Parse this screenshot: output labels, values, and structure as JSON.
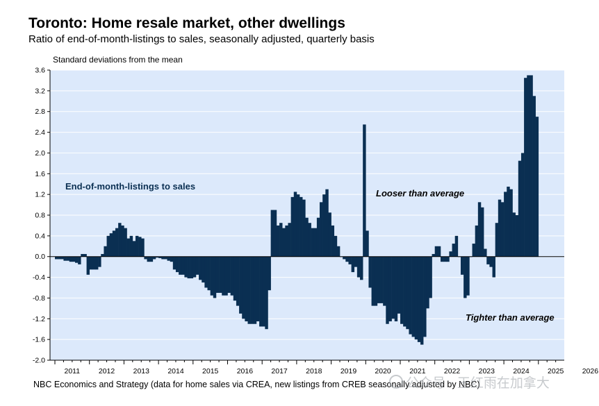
{
  "chart_data": {
    "type": "bar",
    "title": "Toronto: Home resale market, other dwellings",
    "subtitle": "Ratio of end-of-month-listings to sales, seasonally adjusted, quarterly basis",
    "ylabel": "Standard deviations from the mean",
    "series_label": "End-of-month-listings to sales",
    "annotations": [
      "Looser than average",
      "Tighter than average"
    ],
    "source": "NBC Economics and Strategy (data for home sales via CREA, new listings from CREB seasonally adjusted by NBC)",
    "ylim": [
      -2.0,
      3.6
    ],
    "y_ticks": [
      "3.6",
      "3.2",
      "2.8",
      "2.4",
      "2.0",
      "1.6",
      "1.2",
      "0.8",
      "0.4",
      "0.0",
      "-0.4",
      "-0.8",
      "-1.2",
      "-1.6",
      "-2.0"
    ],
    "x_ticks": [
      "2011",
      "2012",
      "2013",
      "2014",
      "2015",
      "2016",
      "2017",
      "2018",
      "2019",
      "2020",
      "2021",
      "2022",
      "2023",
      "2024",
      "2025",
      "2026"
    ],
    "x_start_year": 2011,
    "bars_per_year": 12,
    "grid": true,
    "colors": {
      "bar": "#0a2f52",
      "plot_bg": "#dce9fb",
      "grid": "#ffffff"
    },
    "values": [
      -0.05,
      -0.05,
      -0.05,
      -0.08,
      -0.08,
      -0.1,
      -0.1,
      -0.12,
      -0.15,
      0.05,
      0.05,
      -0.35,
      -0.25,
      -0.25,
      -0.25,
      -0.2,
      0.05,
      0.2,
      0.4,
      0.45,
      0.5,
      0.55,
      0.65,
      0.6,
      0.55,
      0.35,
      0.4,
      0.3,
      0.4,
      0.38,
      0.35,
      -0.05,
      -0.1,
      -0.1,
      -0.05,
      -0.02,
      -0.03,
      -0.05,
      -0.05,
      -0.08,
      -0.1,
      -0.25,
      -0.3,
      -0.35,
      -0.35,
      -0.4,
      -0.42,
      -0.42,
      -0.4,
      -0.35,
      -0.45,
      -0.5,
      -0.6,
      -0.65,
      -0.75,
      -0.8,
      -0.7,
      -0.7,
      -0.75,
      -0.75,
      -0.7,
      -0.75,
      -0.85,
      -0.95,
      -1.1,
      -1.2,
      -1.25,
      -1.3,
      -1.3,
      -1.3,
      -1.25,
      -1.35,
      -1.35,
      -1.4,
      -0.65,
      0.9,
      0.9,
      0.6,
      0.65,
      0.55,
      0.6,
      0.65,
      1.15,
      1.25,
      1.2,
      1.15,
      1.1,
      0.75,
      0.65,
      0.55,
      0.55,
      0.75,
      1.05,
      1.2,
      1.3,
      0.85,
      0.6,
      0.4,
      0.2,
      0.0,
      -0.05,
      -0.1,
      -0.15,
      -0.3,
      -0.2,
      -0.4,
      -0.45,
      2.55,
      0.5,
      -0.6,
      -0.95,
      -0.95,
      -0.9,
      -0.9,
      -0.95,
      -1.3,
      -1.25,
      -1.2,
      -1.25,
      -1.1,
      -1.3,
      -1.35,
      -1.4,
      -1.5,
      -1.55,
      -1.6,
      -1.65,
      -1.7,
      -1.55,
      -1.0,
      -0.8,
      0.05,
      0.2,
      0.2,
      -0.1,
      -0.1,
      -0.1,
      0.1,
      0.25,
      0.4,
      0.0,
      -0.35,
      -0.8,
      -0.75,
      0.0,
      0.25,
      0.6,
      1.05,
      0.95,
      0.15,
      -0.15,
      -0.2,
      -0.4,
      0.65,
      1.1,
      1.05,
      1.25,
      1.35,
      1.3,
      0.85,
      0.8,
      1.85,
      2.0,
      3.45,
      3.5,
      3.5,
      3.1,
      2.7
    ]
  },
  "watermark": "公众号 · 王红雨在加拿大"
}
